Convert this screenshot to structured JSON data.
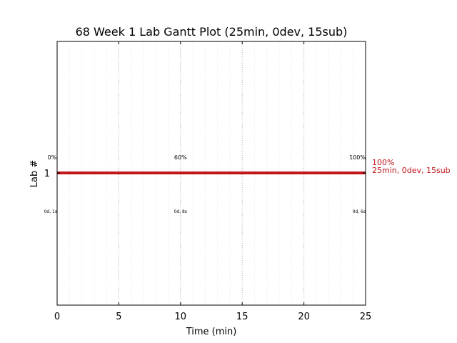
{
  "chart_data": {
    "type": "gantt",
    "title": "68 Week 1 Lab Gantt Plot (25min, 0dev, 15sub)",
    "xlabel": "Time (min)",
    "ylabel": "Lab #",
    "xlim": [
      0,
      25
    ],
    "xticks": [
      0,
      5,
      10,
      15,
      20,
      25
    ],
    "xtick_labels": [
      "0",
      "5",
      "10",
      "15",
      "20",
      "25"
    ],
    "ytick_labels": [
      "1"
    ],
    "grid": "vertical dotted major and faint minor lines",
    "bar_color": "#c0161c",
    "bars": [
      {
        "lab": "1",
        "start": 0,
        "end": 25,
        "end_label_pct": "100%",
        "end_label_detail": "25min, 0dev, 15sub"
      }
    ],
    "percent_markers": [
      {
        "x": 0,
        "label": "0%"
      },
      {
        "x": 10,
        "label": "60%"
      },
      {
        "x": 25,
        "label": "100%"
      }
    ],
    "detail_markers": [
      {
        "x": 0,
        "label": "0d, 1s"
      },
      {
        "x": 10,
        "label": "0d, 8s"
      },
      {
        "x": 25,
        "label": "0d, 6s"
      }
    ]
  }
}
